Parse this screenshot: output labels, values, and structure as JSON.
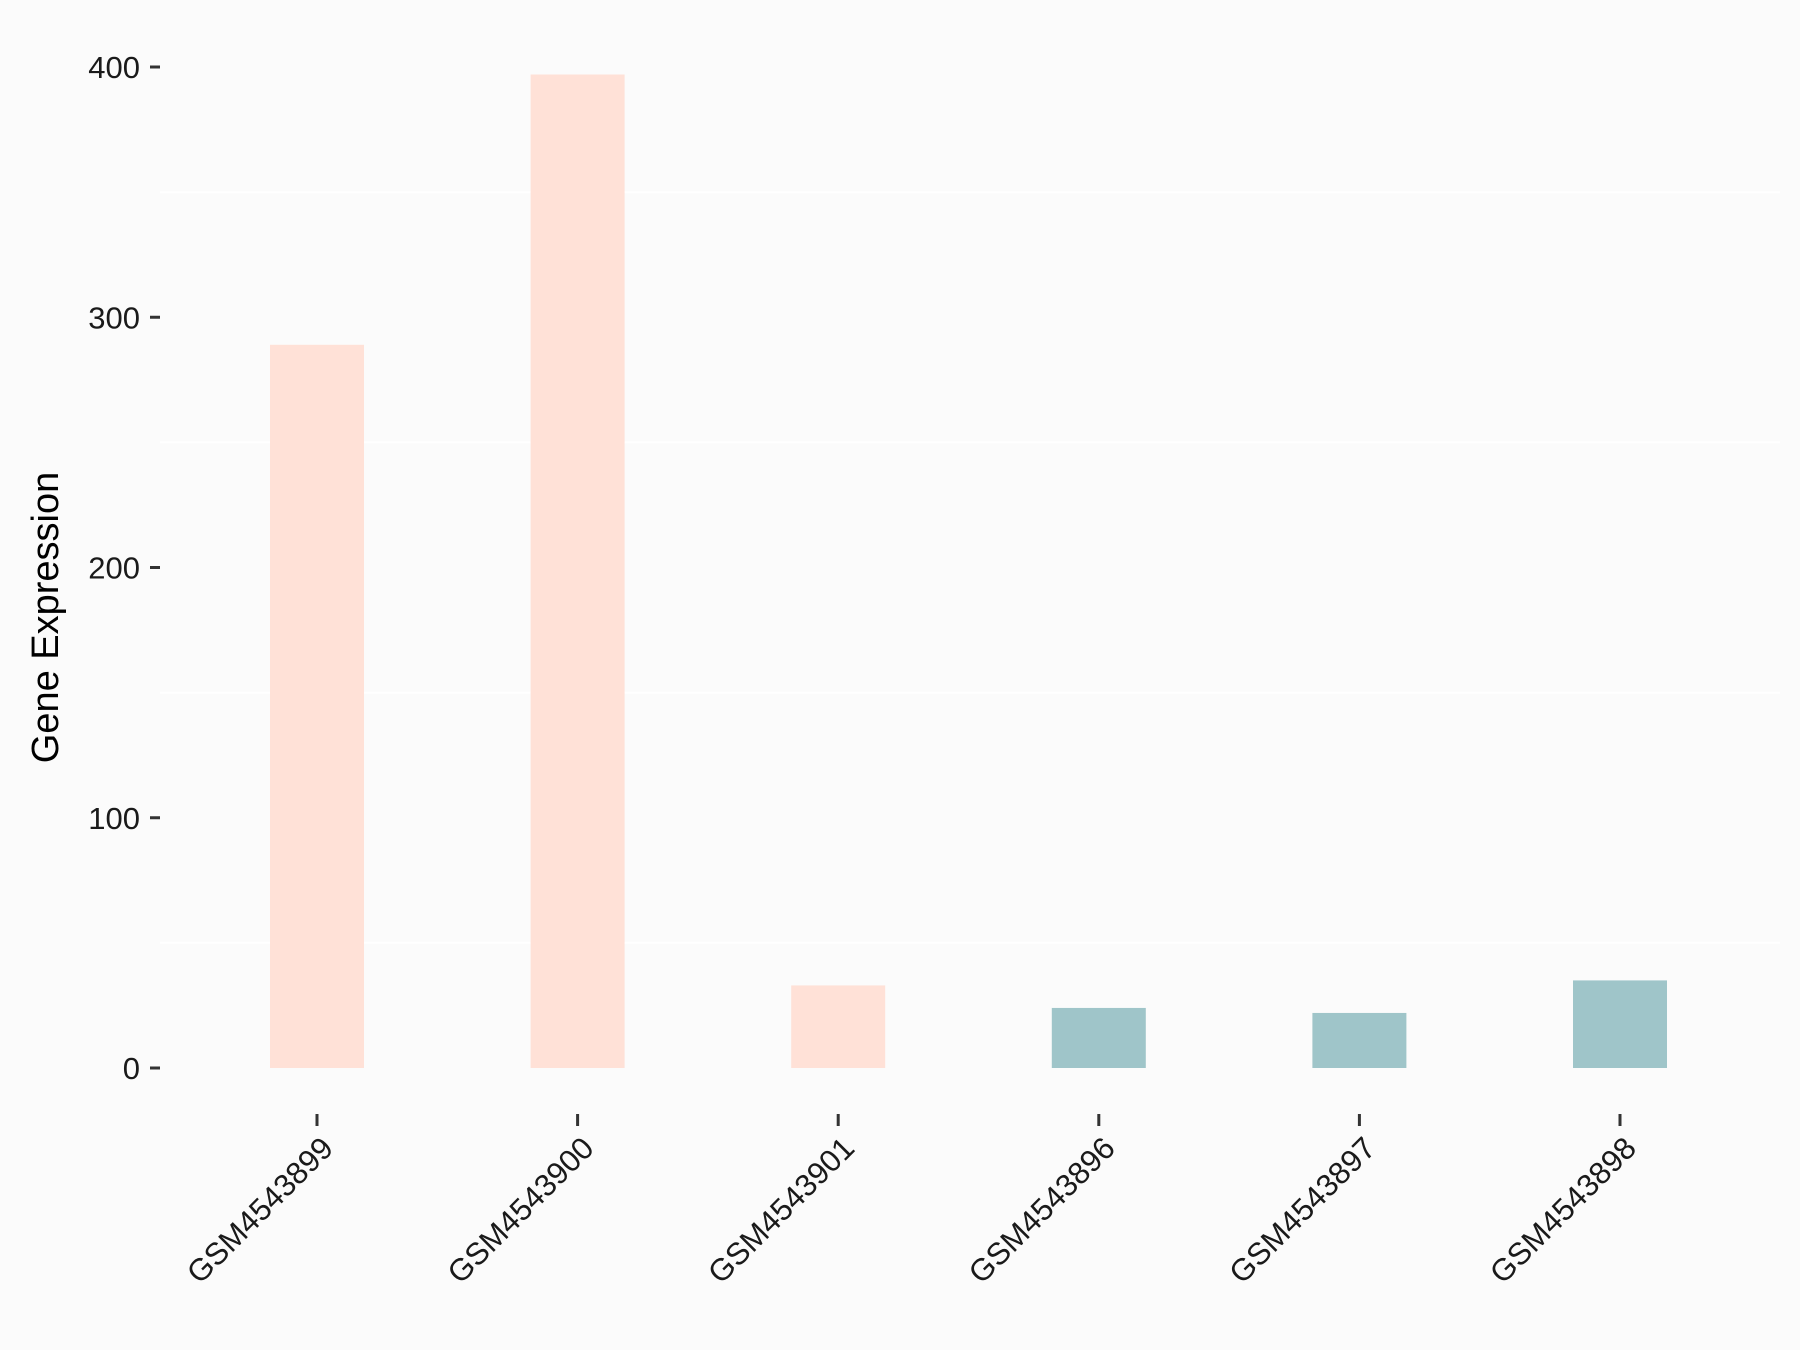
{
  "chart_data": {
    "type": "bar",
    "title": "",
    "xlabel": "",
    "ylabel": "Gene Expression",
    "categories": [
      "GSM4543899",
      "GSM4543900",
      "GSM4543901",
      "GSM4543896",
      "GSM4543897",
      "GSM4543898"
    ],
    "values": [
      289,
      397,
      33,
      24,
      22,
      35
    ],
    "bar_colors": [
      "#ffe1d7",
      "#ffe1d7",
      "#ffe1d7",
      "#9fc5c9",
      "#9fc5c9",
      "#9fc5c9"
    ],
    "ylim": [
      0,
      400
    ],
    "yticks": [
      0,
      100,
      200,
      300,
      400
    ],
    "ytick_labels": [
      "0",
      "100",
      "200",
      "300",
      "400"
    ],
    "grid": true,
    "legend": false,
    "background_color": "#fbfbfb"
  }
}
